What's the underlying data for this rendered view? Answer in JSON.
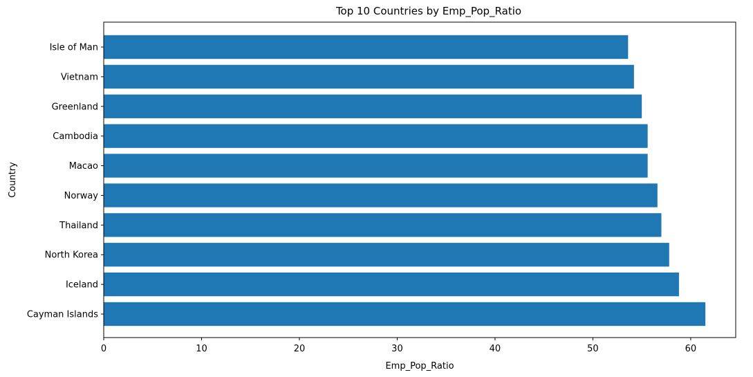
{
  "chart_data": {
    "type": "bar",
    "orientation": "horizontal",
    "title": "Top 10 Countries by Emp_Pop_Ratio",
    "xlabel": "Emp_Pop_Ratio",
    "ylabel": "Country",
    "categories": [
      "Cayman Islands",
      "Iceland",
      "North Korea",
      "Thailand",
      "Norway",
      "Macao",
      "Cambodia",
      "Greenland",
      "Vietnam",
      "Isle of Man"
    ],
    "values": [
      61.5,
      58.8,
      57.8,
      57.0,
      56.6,
      55.6,
      55.6,
      55.0,
      54.2,
      53.6
    ],
    "xlim": [
      0,
      64.6
    ],
    "xticks": [
      0,
      10,
      20,
      30,
      40,
      50,
      60
    ],
    "bar_color": "#1f77b4",
    "grid": false,
    "legend": false
  }
}
